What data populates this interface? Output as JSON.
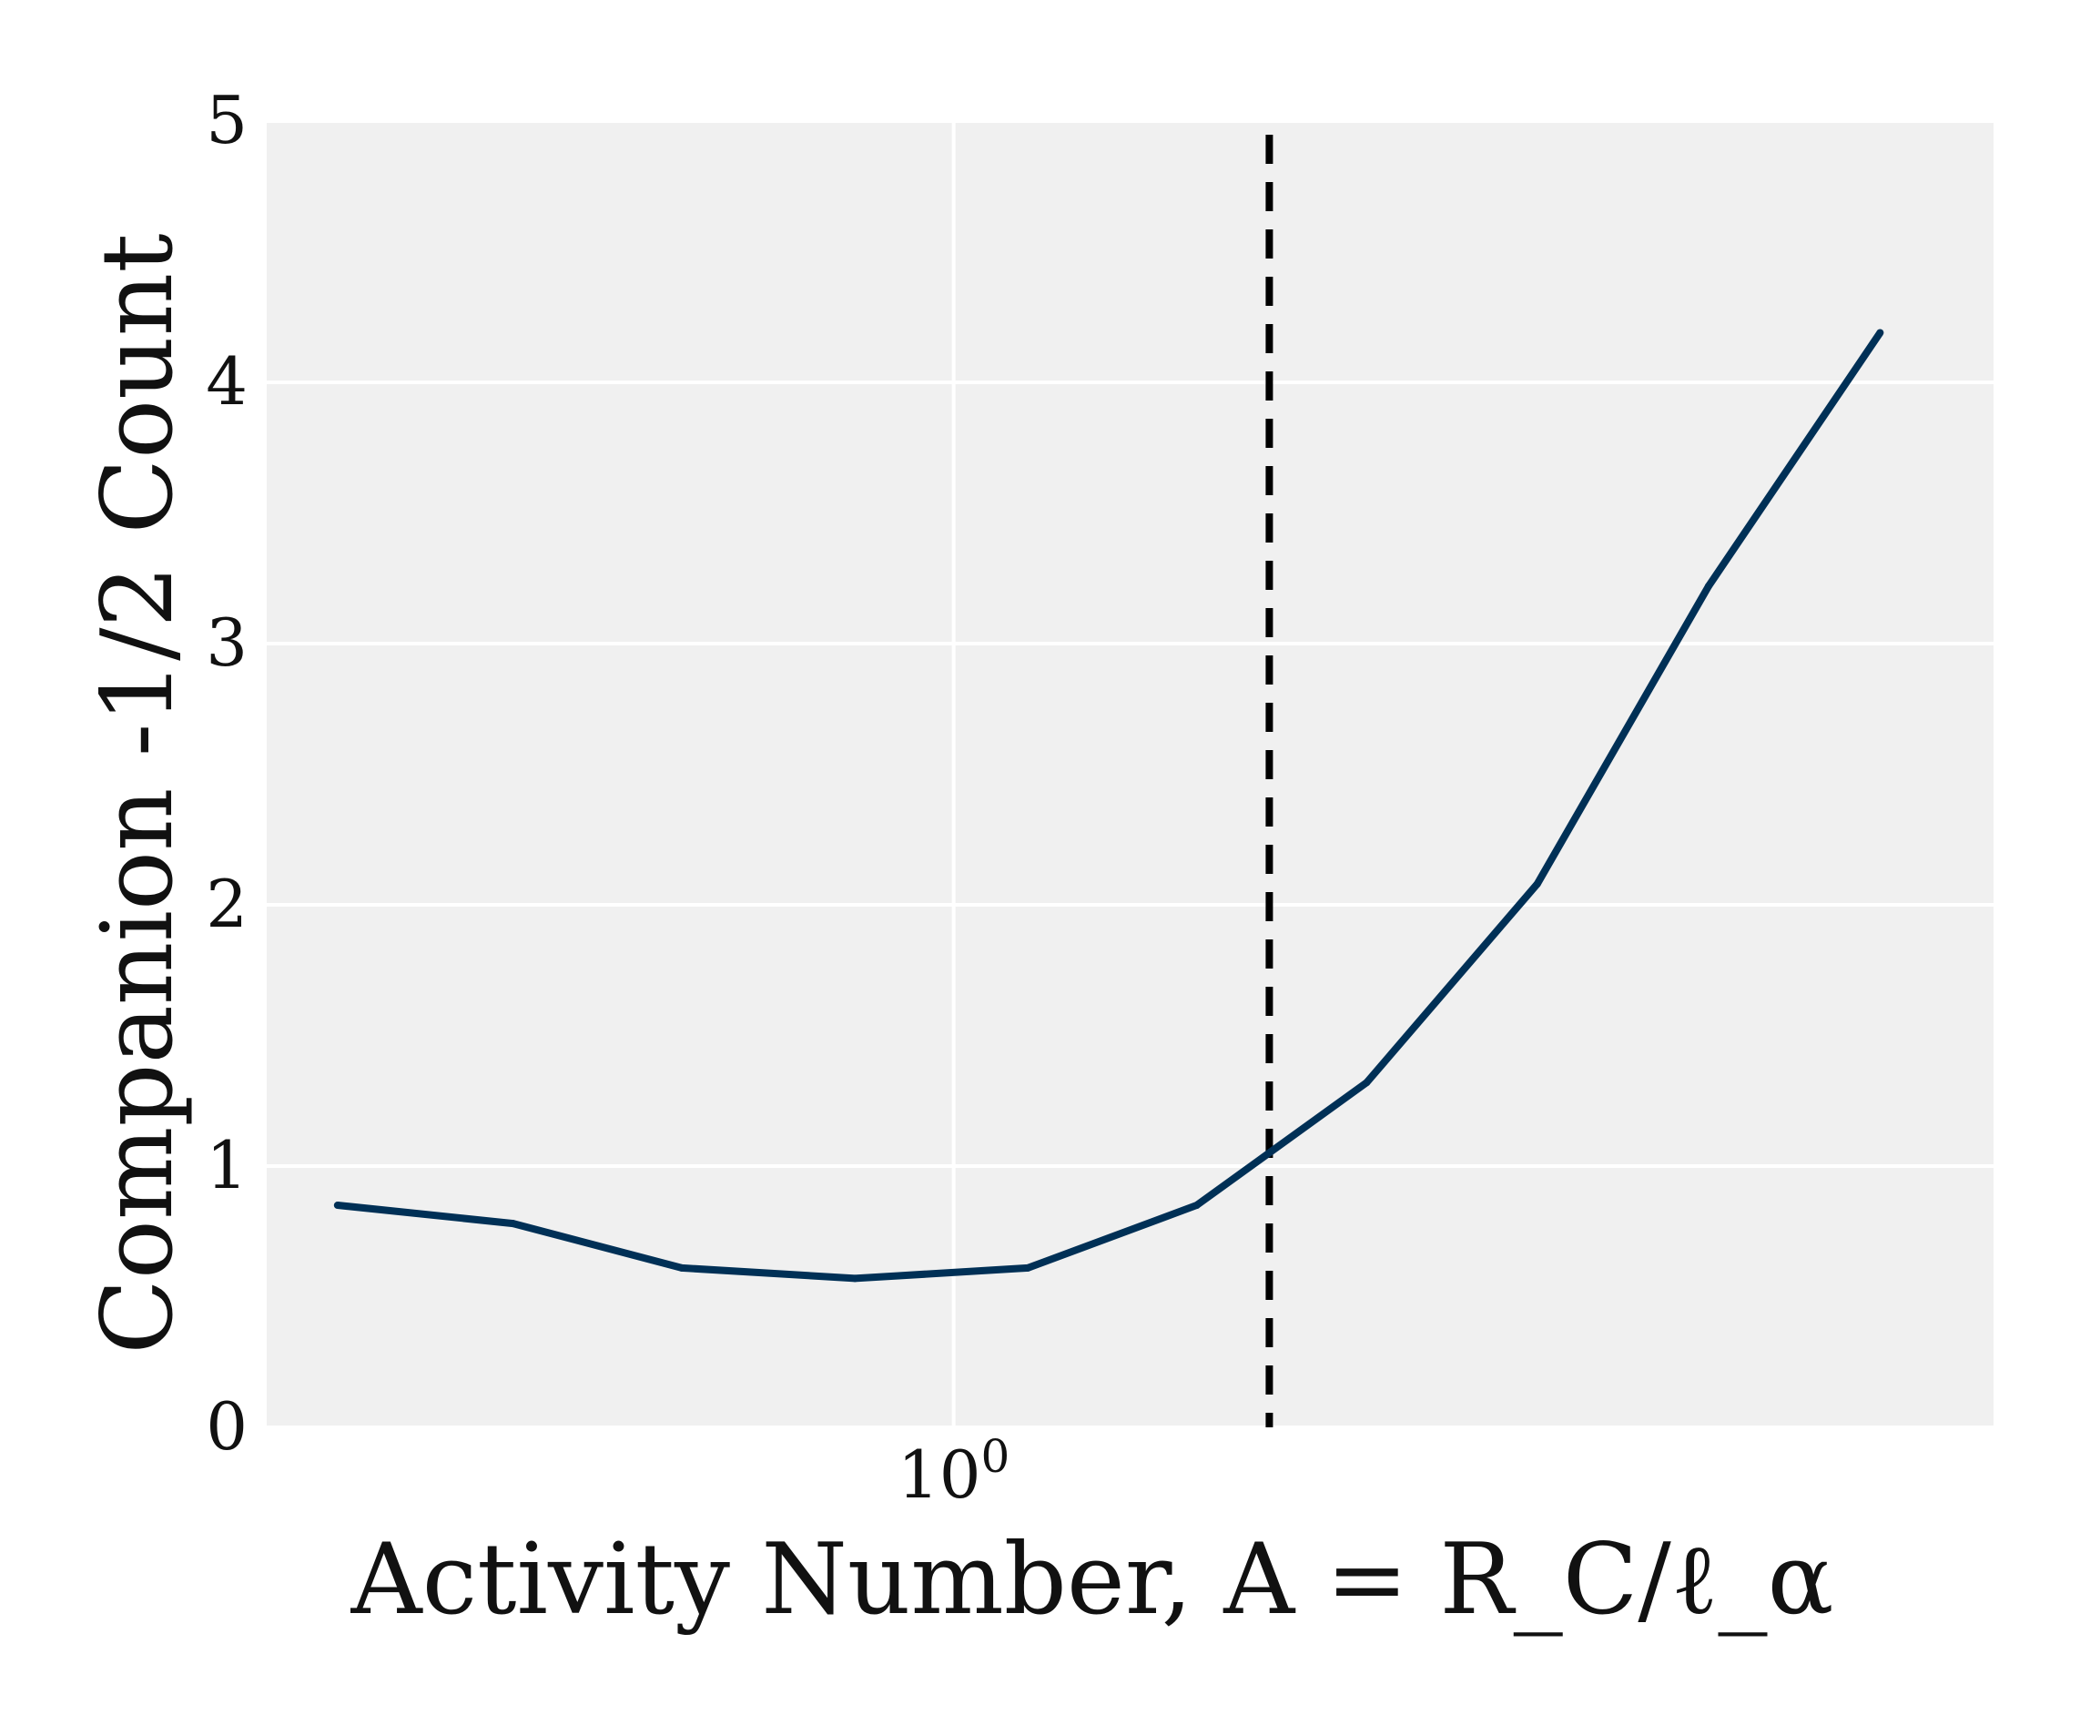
{
  "chart_data": {
    "type": "line",
    "xscale": "log",
    "xlabel": "Activity Number, A = R_C/ℓ_α",
    "ylabel": "Companion -1/2 Count",
    "xlim": [
      0.35,
      4.9
    ],
    "ylim": [
      0,
      5
    ],
    "x_ticks": [
      {
        "value": 1,
        "label": "10^0"
      }
    ],
    "y_ticks": [
      0,
      1,
      2,
      3,
      4,
      5
    ],
    "grid": true,
    "series": [
      {
        "name": "",
        "color": "#003056",
        "x": [
          0.39,
          0.51,
          0.66,
          0.86,
          1.12,
          1.45,
          1.88,
          2.44,
          3.17,
          4.12
        ],
        "y": [
          0.85,
          0.78,
          0.61,
          0.57,
          0.61,
          0.85,
          1.32,
          2.08,
          3.22,
          4.19
        ]
      }
    ],
    "reference_lines": [
      {
        "orientation": "vertical",
        "x": 1.62,
        "style": "dashed",
        "color": "#000000"
      }
    ]
  }
}
